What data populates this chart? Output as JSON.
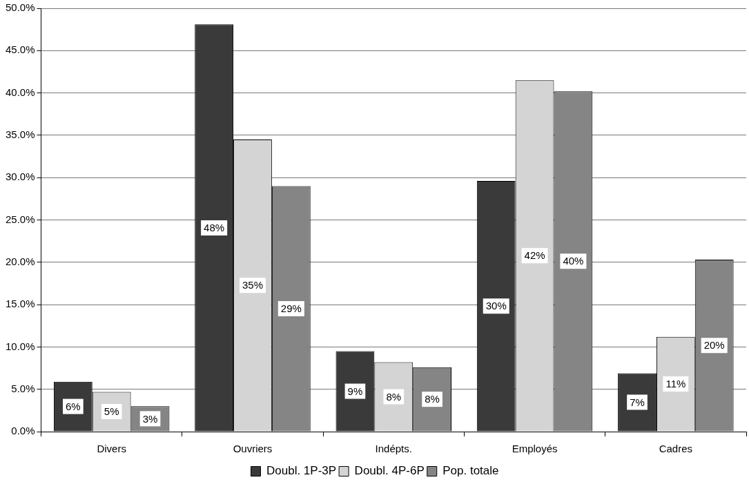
{
  "chart_data": {
    "type": "bar",
    "categories": [
      "Divers",
      "Ouvriers",
      "Indépts.",
      "Employés",
      "Cadres"
    ],
    "series": [
      {
        "name": "Doubl. 1P-3P",
        "color": "#3a3a3a",
        "values": [
          5.9,
          48.1,
          9.5,
          29.6,
          6.9
        ],
        "value_labels": [
          "6%",
          "48%",
          "9%",
          "30%",
          "7%"
        ]
      },
      {
        "name": "Doubl. 4P-6P",
        "color": "#d4d4d4",
        "values": [
          4.7,
          34.5,
          8.2,
          41.5,
          11.2
        ],
        "value_labels": [
          "5%",
          "35%",
          "8%",
          "42%",
          "11%"
        ]
      },
      {
        "name": "Pop. totale",
        "color": "#858585",
        "values": [
          3.0,
          29.0,
          7.6,
          40.2,
          20.3
        ],
        "value_labels": [
          "3%",
          "29%",
          "8%",
          "40%",
          "20%"
        ]
      }
    ],
    "ylim": [
      0,
      50
    ],
    "yticks": [
      {
        "value": 0,
        "label": "0.0%"
      },
      {
        "value": 5,
        "label": "5.0%"
      },
      {
        "value": 10,
        "label": "10.0%"
      },
      {
        "value": 15,
        "label": "15.0%"
      },
      {
        "value": 20,
        "label": "20.0%"
      },
      {
        "value": 25,
        "label": "25.0%"
      },
      {
        "value": 30,
        "label": "30.0%"
      },
      {
        "value": 35,
        "label": "35.0%"
      },
      {
        "value": 40,
        "label": "40.0%"
      },
      {
        "value": 45,
        "label": "45.0%"
      },
      {
        "value": 50,
        "label": "50.0%"
      }
    ],
    "grid": "y",
    "legend": "bottom"
  }
}
